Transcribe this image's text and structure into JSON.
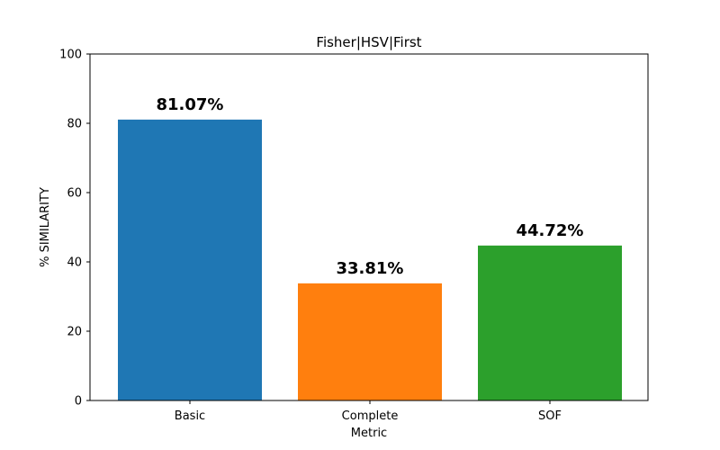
{
  "chart_data": {
    "type": "bar",
    "title": "Fisher|HSV|First",
    "xlabel": "Metric",
    "ylabel": "% SIMILARITY",
    "categories": [
      "Basic",
      "Complete",
      "SOF"
    ],
    "values": [
      81.07,
      33.81,
      44.72
    ],
    "data_labels": [
      "81.07%",
      "33.81%",
      "44.72%"
    ],
    "colors": [
      "#1f77b4",
      "#ff7f0e",
      "#2ca02c"
    ],
    "ylim": [
      0,
      100
    ],
    "yticks": [
      0,
      20,
      40,
      60,
      80,
      100
    ],
    "grid": false,
    "legend": "none"
  }
}
